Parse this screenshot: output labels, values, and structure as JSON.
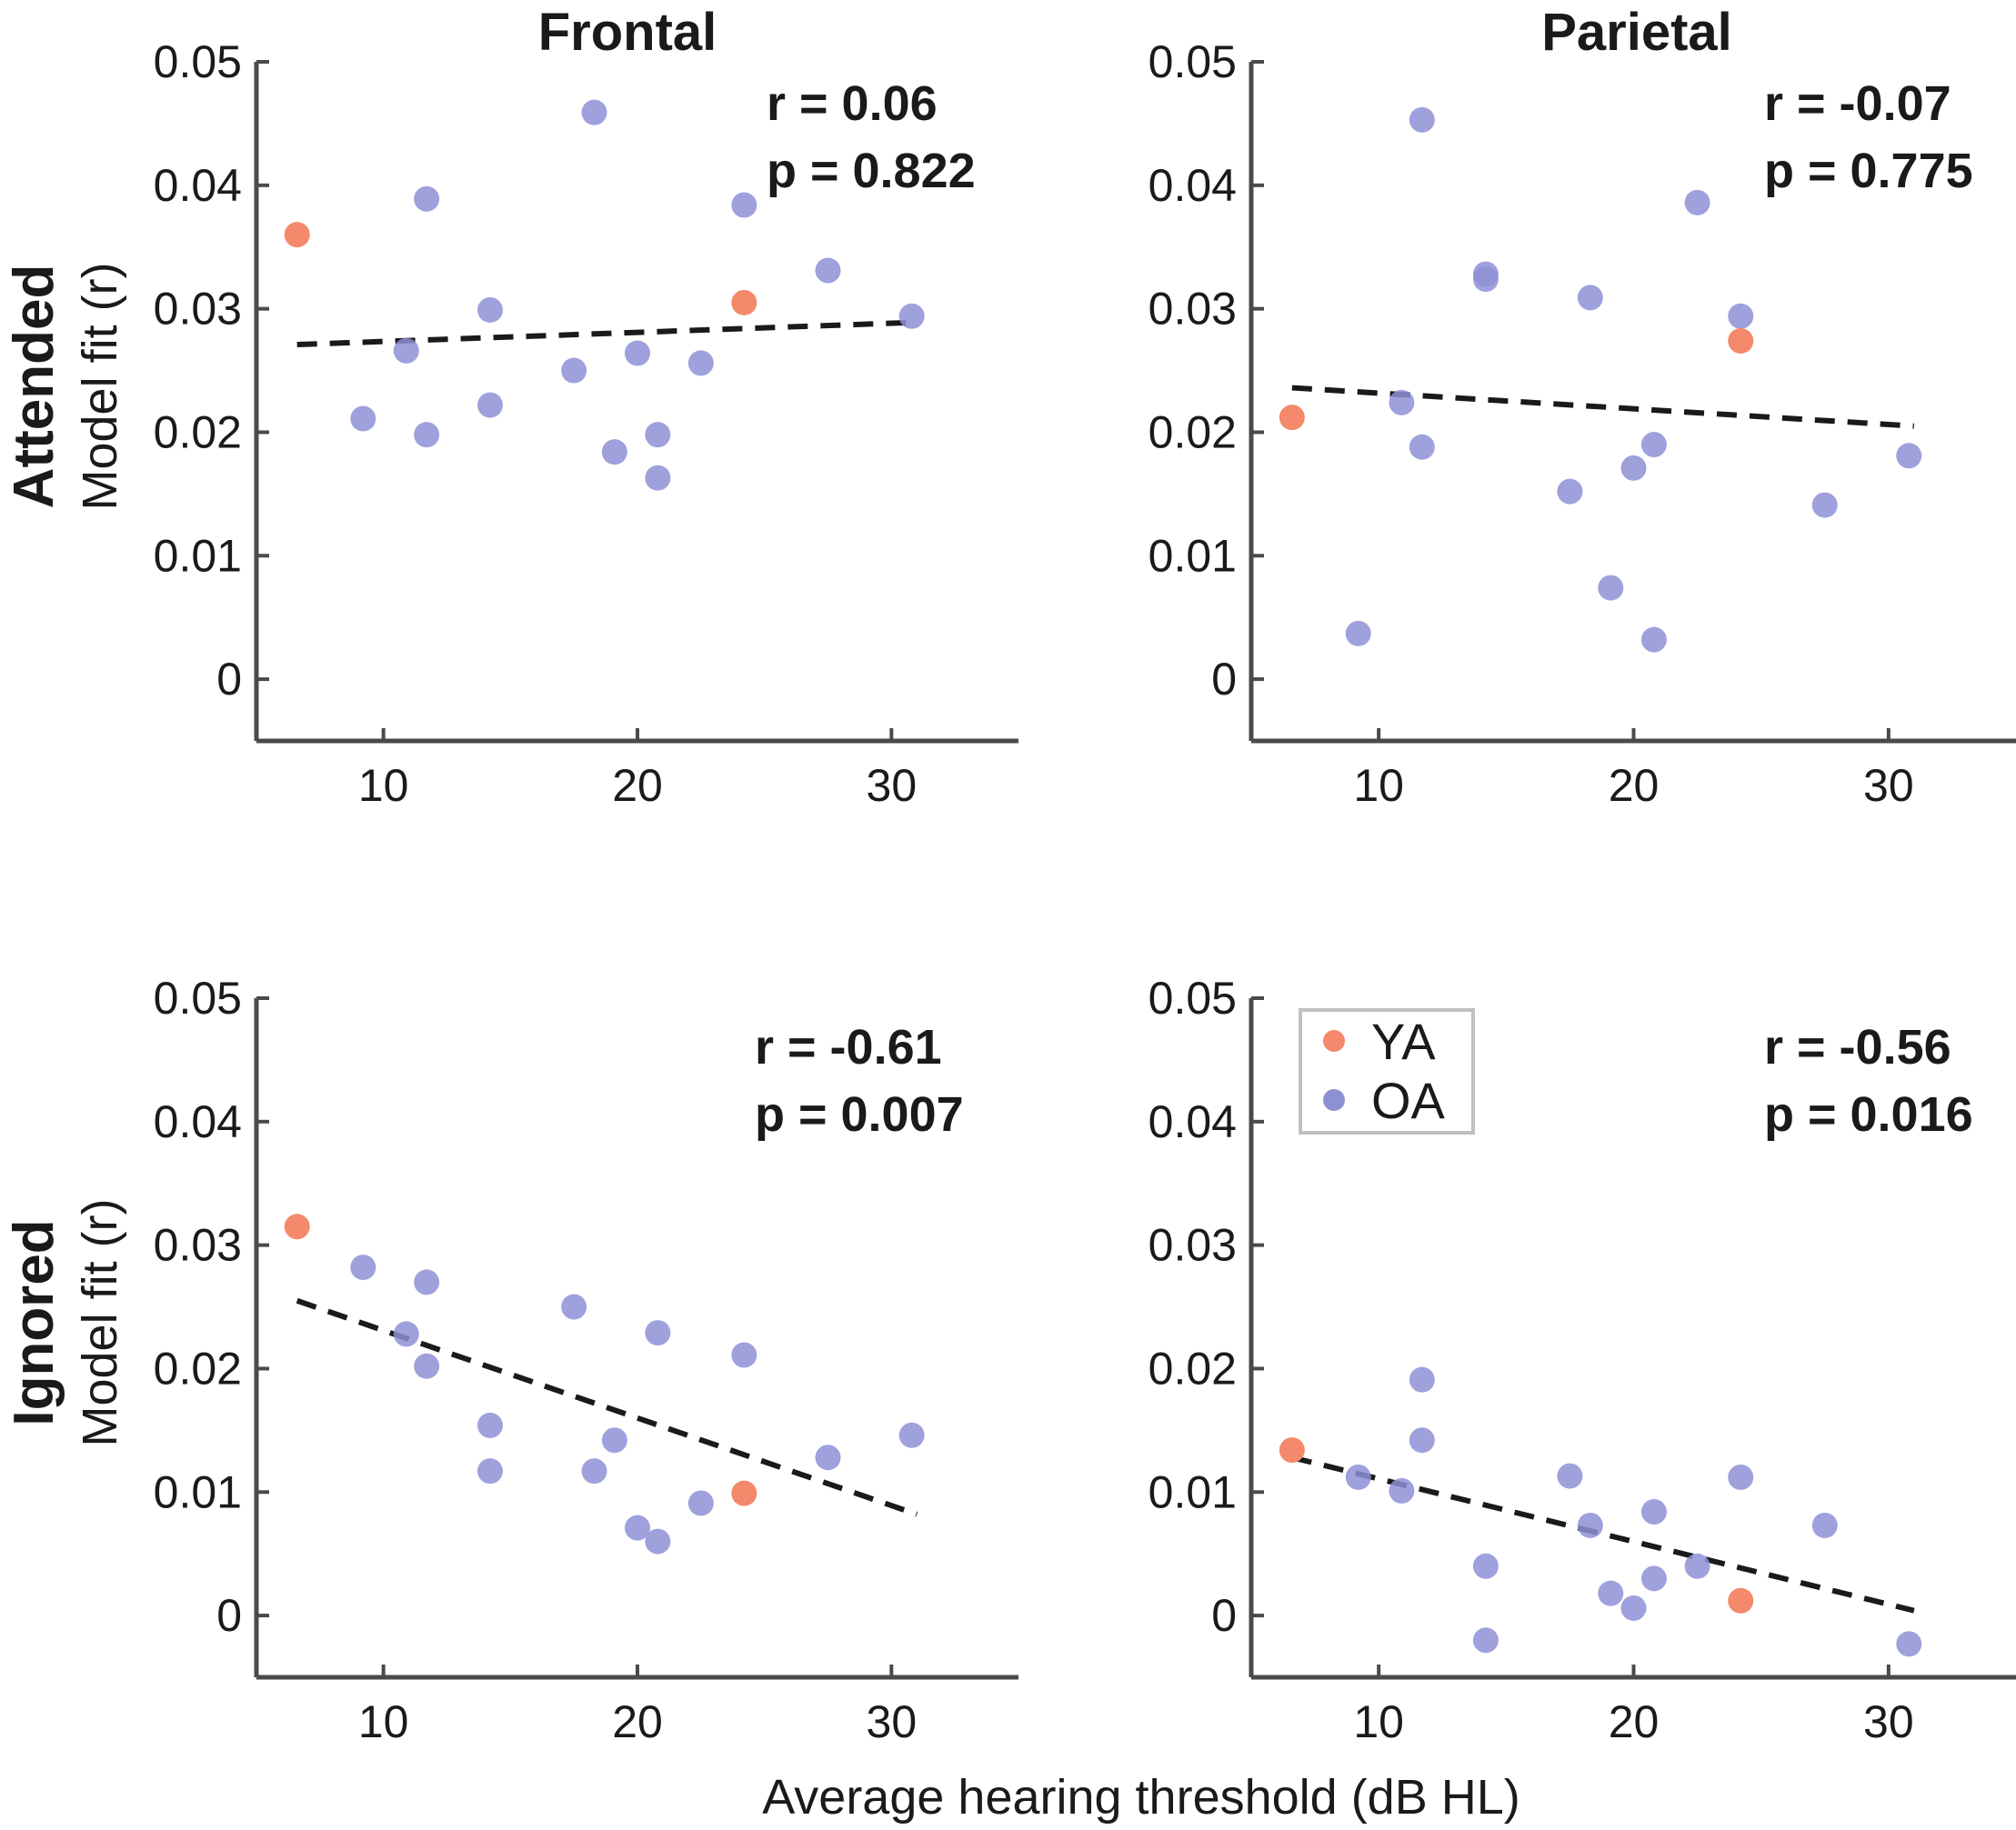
{
  "colors": {
    "YA": "#f4896b",
    "OA": "#8e90d6",
    "axis": "#4a4a4a",
    "fit": "#1a1a1a",
    "legend_border": "#c0c0c0"
  },
  "xlabel": "Average hearing threshold (dB HL)",
  "legend": {
    "entries": [
      {
        "key": "YA",
        "label": "YA"
      },
      {
        "key": "OA",
        "label": "OA"
      }
    ]
  },
  "chart_data": [
    {
      "type": "scatter",
      "id": "attended-frontal",
      "title": "Frontal",
      "row_label": "Attended",
      "ylabel": "Model fit (r)",
      "xlim": [
        5,
        35
      ],
      "ylim": [
        -0.005,
        0.05
      ],
      "xticks": [
        10,
        20,
        30
      ],
      "xtick_labels": [
        "10",
        "20",
        "30"
      ],
      "yticks": [
        0,
        0.01,
        0.02,
        0.03,
        0.04,
        0.05
      ],
      "ytick_labels": [
        "0",
        "0.01",
        "0.02",
        "0.03",
        "0.04",
        "0.05"
      ],
      "stats": {
        "r": "r = 0.06",
        "p": "p = 0.822"
      },
      "fit_line": {
        "x": [
          6.6,
          31
        ],
        "y": [
          0.0271,
          0.0289
        ]
      },
      "series": [
        {
          "name": "YA",
          "points": [
            [
              6.6,
              0.036
            ],
            [
              24.2,
              0.0305
            ]
          ]
        },
        {
          "name": "OA",
          "points": [
            [
              9.2,
              0.0211
            ],
            [
              10.9,
              0.0266
            ],
            [
              11.7,
              0.0389
            ],
            [
              11.7,
              0.0198
            ],
            [
              14.2,
              0.0299
            ],
            [
              14.2,
              0.0222
            ],
            [
              17.5,
              0.025
            ],
            [
              18.3,
              0.0459
            ],
            [
              19.1,
              0.0184
            ],
            [
              20.0,
              0.0264
            ],
            [
              20.8,
              0.0198
            ],
            [
              20.8,
              0.0163
            ],
            [
              22.5,
              0.0256
            ],
            [
              24.2,
              0.0384
            ],
            [
              27.5,
              0.0331
            ],
            [
              30.8,
              0.0294
            ]
          ]
        }
      ]
    },
    {
      "type": "scatter",
      "id": "attended-parietal",
      "title": "Parietal",
      "row_label": "",
      "ylabel": "",
      "xlim": [
        5,
        35
      ],
      "ylim": [
        -0.005,
        0.05
      ],
      "xticks": [
        10,
        20,
        30
      ],
      "xtick_labels": [
        "10",
        "20",
        "30"
      ],
      "yticks": [
        0,
        0.01,
        0.02,
        0.03,
        0.04,
        0.05
      ],
      "ytick_labels": [
        "0",
        "0.01",
        "0.02",
        "0.03",
        "0.04",
        "0.05"
      ],
      "stats": {
        "r": "r = -0.07",
        "p": "p = 0.775"
      },
      "fit_line": {
        "x": [
          6.6,
          31
        ],
        "y": [
          0.0236,
          0.0205
        ]
      },
      "series": [
        {
          "name": "YA",
          "points": [
            [
              6.6,
              0.0212
            ],
            [
              24.2,
              0.0274
            ]
          ]
        },
        {
          "name": "OA",
          "points": [
            [
              9.2,
              0.0037
            ],
            [
              10.9,
              0.0224
            ],
            [
              11.7,
              0.0453
            ],
            [
              11.7,
              0.0188
            ],
            [
              14.2,
              0.0328
            ],
            [
              14.2,
              0.0324
            ],
            [
              17.5,
              0.0152
            ],
            [
              18.3,
              0.0309
            ],
            [
              19.1,
              0.0074
            ],
            [
              20.0,
              0.0171
            ],
            [
              20.8,
              0.019
            ],
            [
              20.8,
              0.0032
            ],
            [
              22.5,
              0.0386
            ],
            [
              24.2,
              0.0294
            ],
            [
              27.5,
              0.0141
            ],
            [
              30.8,
              0.0181
            ]
          ]
        }
      ]
    },
    {
      "type": "scatter",
      "id": "ignored-frontal",
      "title": "",
      "row_label": "Ignored",
      "ylabel": "Model fit (r)",
      "xlim": [
        5,
        35
      ],
      "ylim": [
        -0.005,
        0.05
      ],
      "xticks": [
        10,
        20,
        30
      ],
      "xtick_labels": [
        "10",
        "20",
        "30"
      ],
      "yticks": [
        0,
        0.01,
        0.02,
        0.03,
        0.04,
        0.05
      ],
      "ytick_labels": [
        "0",
        "0.01",
        "0.02",
        "0.03",
        "0.04",
        "0.05"
      ],
      "stats": {
        "r": "r = -0.61",
        "p": "p = 0.007"
      },
      "fit_line": {
        "x": [
          6.6,
          31
        ],
        "y": [
          0.0255,
          0.0082
        ]
      },
      "series": [
        {
          "name": "YA",
          "points": [
            [
              6.6,
              0.0315
            ],
            [
              24.2,
              0.0099
            ]
          ]
        },
        {
          "name": "OA",
          "points": [
            [
              9.2,
              0.0282
            ],
            [
              10.9,
              0.0228
            ],
            [
              11.7,
              0.027
            ],
            [
              11.7,
              0.0202
            ],
            [
              14.2,
              0.0154
            ],
            [
              14.2,
              0.0117
            ],
            [
              17.5,
              0.025
            ],
            [
              18.3,
              0.0117
            ],
            [
              19.1,
              0.0142
            ],
            [
              20.0,
              0.0071
            ],
            [
              20.8,
              0.0229
            ],
            [
              20.8,
              0.006
            ],
            [
              22.5,
              0.0091
            ],
            [
              24.2,
              0.0211
            ],
            [
              27.5,
              0.0128
            ],
            [
              30.8,
              0.0146
            ]
          ]
        }
      ]
    },
    {
      "type": "scatter",
      "id": "ignored-parietal",
      "title": "",
      "row_label": "",
      "ylabel": "",
      "xlim": [
        5,
        35
      ],
      "ylim": [
        -0.005,
        0.05
      ],
      "xticks": [
        10,
        20,
        30
      ],
      "xtick_labels": [
        "10",
        "20",
        "30"
      ],
      "yticks": [
        0,
        0.01,
        0.02,
        0.03,
        0.04,
        0.05
      ],
      "ytick_labels": [
        "0",
        "0.01",
        "0.02",
        "0.03",
        "0.04",
        "0.05"
      ],
      "stats": {
        "r": "r = -0.56",
        "p": "p = 0.016"
      },
      "fit_line": {
        "x": [
          6.6,
          31
        ],
        "y": [
          0.0128,
          0.0004
        ]
      },
      "series": [
        {
          "name": "YA",
          "points": [
            [
              6.6,
              0.0134
            ],
            [
              24.2,
              0.0012
            ]
          ]
        },
        {
          "name": "OA",
          "points": [
            [
              9.2,
              0.0112
            ],
            [
              10.9,
              0.0101
            ],
            [
              11.7,
              0.0191
            ],
            [
              11.7,
              0.0142
            ],
            [
              14.2,
              0.004
            ],
            [
              14.2,
              -0.002
            ],
            [
              17.5,
              0.0113
            ],
            [
              18.3,
              0.0073
            ],
            [
              19.1,
              0.0018
            ],
            [
              20.0,
              0.0006
            ],
            [
              20.8,
              0.0084
            ],
            [
              20.8,
              0.003
            ],
            [
              22.5,
              0.004
            ],
            [
              24.2,
              0.0112
            ],
            [
              27.5,
              0.0073
            ],
            [
              30.8,
              -0.0023
            ]
          ]
        }
      ]
    }
  ]
}
